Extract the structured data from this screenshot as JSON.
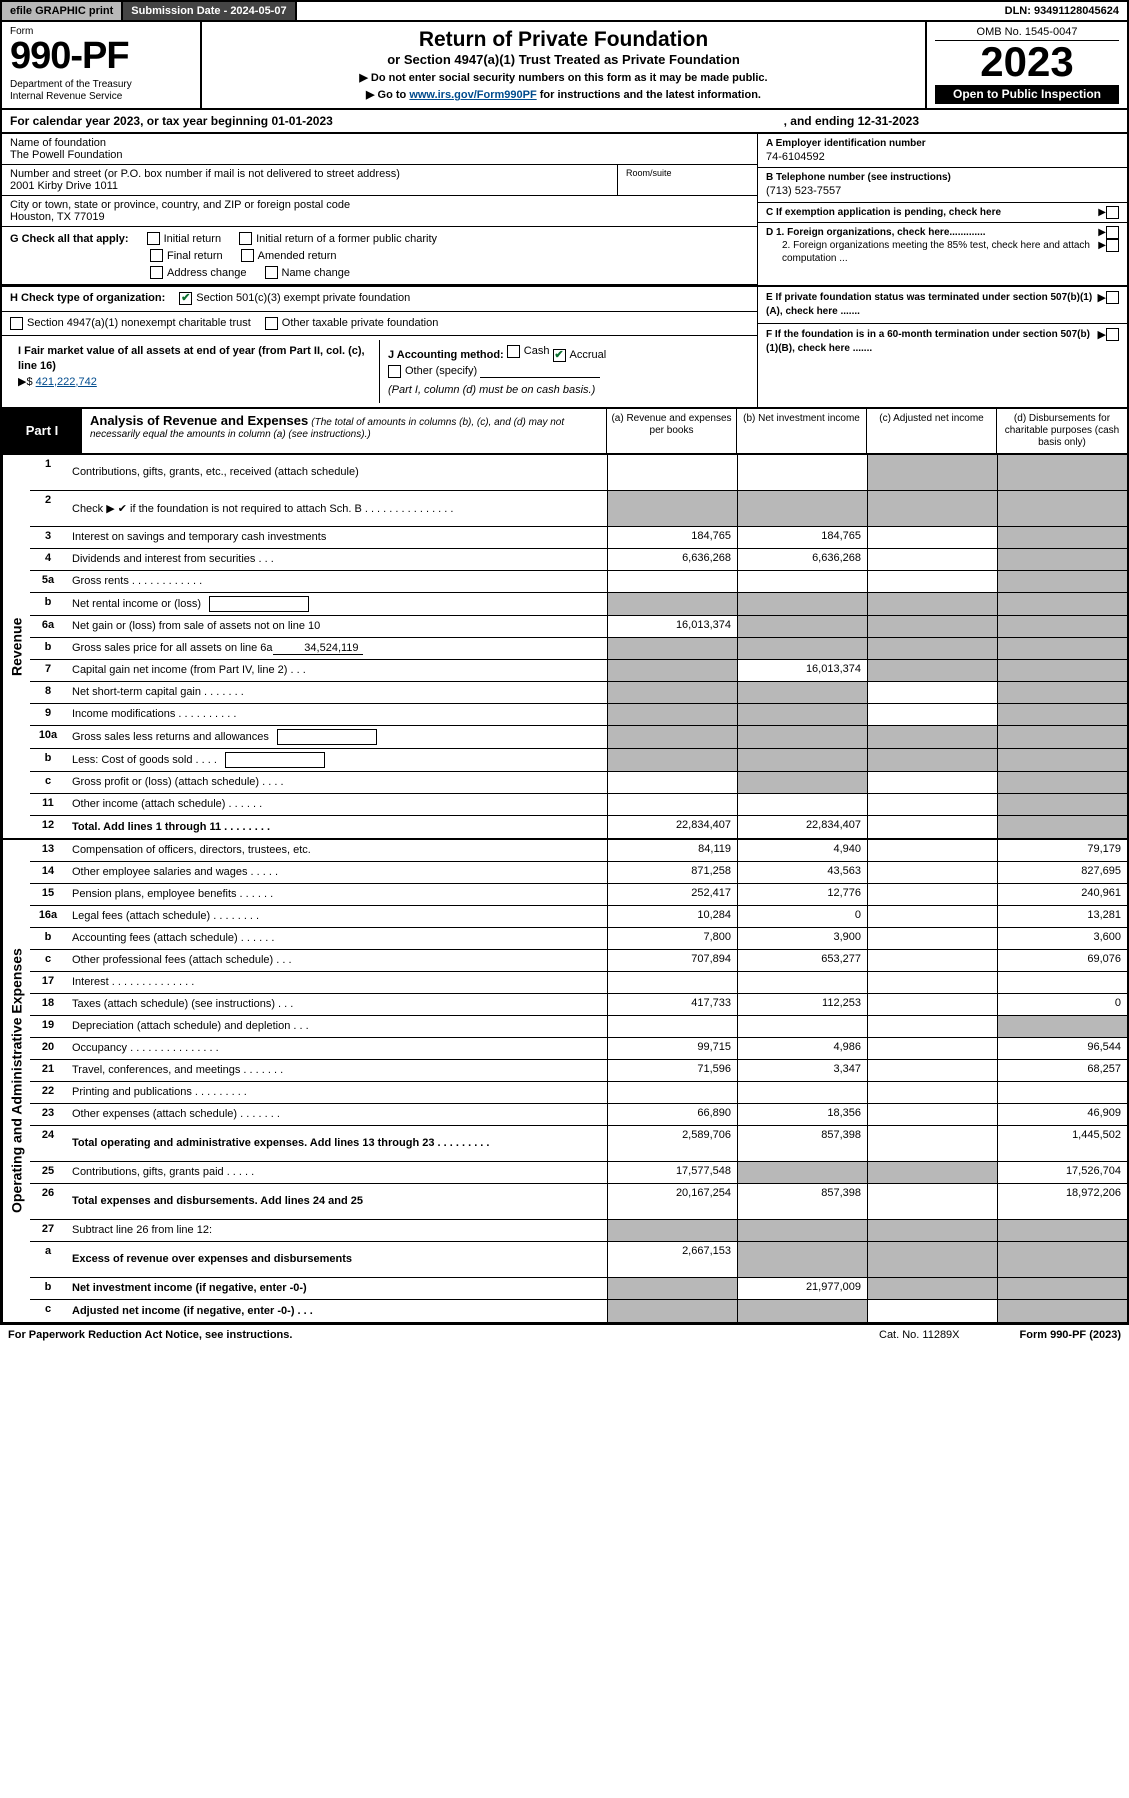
{
  "top": {
    "efile": "efile GRAPHIC print",
    "subm_label": "Submission Date - 2024-05-07",
    "dln": "DLN: 93491128045624"
  },
  "header": {
    "form_word": "Form",
    "form_no": "990-PF",
    "dept": "Department of the Treasury",
    "irs": "Internal Revenue Service",
    "title": "Return of Private Foundation",
    "subtitle": "or Section 4947(a)(1) Trust Treated as Private Foundation",
    "instr1": "▶ Do not enter social security numbers on this form as it may be made public.",
    "instr2_pre": "▶ Go to ",
    "instr2_link": "www.irs.gov/Form990PF",
    "instr2_post": " for instructions and the latest information.",
    "omb": "OMB No. 1545-0047",
    "year": "2023",
    "open": "Open to Public Inspection"
  },
  "calyear": {
    "pre": "For calendar year 2023, or tax year beginning 01-01-2023",
    "end": ", and ending 12-31-2023"
  },
  "entity": {
    "name_lab": "Name of foundation",
    "name": "The Powell Foundation",
    "addr_lab": "Number and street (or P.O. box number if mail is not delivered to street address)",
    "addr": "2001 Kirby Drive 1011",
    "room_lab": "Room/suite",
    "city_lab": "City or town, state or province, country, and ZIP or foreign postal code",
    "city": "Houston, TX  77019",
    "A_lab": "A Employer identification number",
    "A_val": "74-6104592",
    "B_lab": "B Telephone number (see instructions)",
    "B_val": "(713) 523-7557",
    "C_lab": "C If exemption application is pending, check here",
    "D1": "D 1. Foreign organizations, check here.............",
    "D2": "2. Foreign organizations meeting the 85% test, check here and attach computation ...",
    "E": "E  If private foundation status was terminated under section 507(b)(1)(A), check here .......",
    "F": "F  If the foundation is in a 60-month termination under section 507(b)(1)(B), check here .......",
    "G_lab": "G Check all that apply:",
    "G_opts": [
      "Initial return",
      "Initial return of a former public charity",
      "Final return",
      "Amended return",
      "Address change",
      "Name change"
    ],
    "H_lab": "H Check type of organization:",
    "H1": "Section 501(c)(3) exempt private foundation",
    "H2": "Section 4947(a)(1) nonexempt charitable trust",
    "H3": "Other taxable private foundation",
    "I_lab": "I Fair market value of all assets at end of year (from Part II, col. (c), line 16)",
    "I_val": "421,222,742",
    "J_lab": "J Accounting method:",
    "J_cash": "Cash",
    "J_accrual": "Accrual",
    "J_other": "Other (specify)",
    "J_note": "(Part I, column (d) must be on cash basis.)"
  },
  "part1": {
    "label": "Part I",
    "title": "Analysis of Revenue and Expenses",
    "note": "(The total of amounts in columns (b), (c), and (d) may not necessarily equal the amounts in column (a) (see instructions).)",
    "cols": {
      "a": "(a)   Revenue and expenses per books",
      "b": "(b)   Net investment income",
      "c": "(c)   Adjusted net income",
      "d": "(d)   Disbursements for charitable purposes (cash basis only)"
    }
  },
  "sections": {
    "revenue": "Revenue",
    "expenses": "Operating and Administrative Expenses"
  },
  "rows": [
    {
      "n": "1",
      "d": "Contributions, gifts, grants, etc., received (attach schedule)",
      "a": "",
      "b": "",
      "cGrey": true,
      "dGrey": true,
      "tall": true
    },
    {
      "n": "2",
      "d": "Check ▶ ✔ if the foundation is not required to attach Sch. B   .  .  .  .  .  .  .  .  .  .  .  .  .  .  .",
      "noAmts": true,
      "tall": true
    },
    {
      "n": "3",
      "d": "Interest on savings and temporary cash investments",
      "a": "184,765",
      "b": "184,765",
      "cGrey": false,
      "dGrey": true
    },
    {
      "n": "4",
      "d": "Dividends and interest from securities   .  .  .",
      "a": "6,636,268",
      "b": "6,636,268",
      "dGrey": true
    },
    {
      "n": "5a",
      "d": "Gross rents   .  .  .  .  .  .  .  .  .  .  .  .",
      "a": "",
      "b": "",
      "dGrey": true
    },
    {
      "n": "b",
      "d": "Net rental income or (loss)",
      "inline": true,
      "aGrey": true,
      "bGrey": true,
      "cGrey": true,
      "dGrey": true
    },
    {
      "n": "6a",
      "d": "Net gain or (loss) from sale of assets not on line 10",
      "a": "16,013,374",
      "bGrey": true,
      "cGrey": true,
      "dGrey": true
    },
    {
      "n": "b",
      "d": "Gross sales price for all assets on line 6a",
      "inlineVal": "34,524,119",
      "aGrey": true,
      "bGrey": true,
      "cGrey": true,
      "dGrey": true
    },
    {
      "n": "7",
      "d": "Capital gain net income (from Part IV, line 2)   .  .  .",
      "aGrey": true,
      "b": "16,013,374",
      "cGrey": true,
      "dGrey": true
    },
    {
      "n": "8",
      "d": "Net short-term capital gain  .  .  .  .  .  .  .",
      "aGrey": true,
      "bGrey": true,
      "dGrey": true
    },
    {
      "n": "9",
      "d": "Income modifications .  .  .  .  .  .  .  .  .  .",
      "aGrey": true,
      "bGrey": true,
      "dGrey": true
    },
    {
      "n": "10a",
      "d": "Gross sales less returns and allowances",
      "inline": true,
      "aGrey": true,
      "bGrey": true,
      "cGrey": true,
      "dGrey": true
    },
    {
      "n": "b",
      "d": "Less: Cost of goods sold   .  .  .  .",
      "inline": true,
      "aGrey": true,
      "bGrey": true,
      "cGrey": true,
      "dGrey": true
    },
    {
      "n": "c",
      "d": "Gross profit or (loss) (attach schedule)   .  .  .  .",
      "a": "",
      "bGrey": true,
      "dGrey": true
    },
    {
      "n": "11",
      "d": "Other income (attach schedule)   .  .  .  .  .  .",
      "a": "",
      "b": "",
      "dGrey": true
    },
    {
      "n": "12",
      "d": "Total. Add lines 1 through 11   .  .  .  .  .  .  .  .",
      "bold": true,
      "a": "22,834,407",
      "b": "22,834,407",
      "dGrey": true
    }
  ],
  "exp_rows": [
    {
      "n": "13",
      "d": "Compensation of officers, directors, trustees, etc.",
      "a": "84,119",
      "b": "4,940",
      "dv": "79,179"
    },
    {
      "n": "14",
      "d": "Other employee salaries and wages   .  .  .  .  .",
      "a": "871,258",
      "b": "43,563",
      "dv": "827,695"
    },
    {
      "n": "15",
      "d": "Pension plans, employee benefits .  .  .  .  .  .",
      "a": "252,417",
      "b": "12,776",
      "dv": "240,961"
    },
    {
      "n": "16a",
      "d": "Legal fees (attach schedule) .  .  .  .  .  .  .  .",
      "a": "10,284",
      "b": "0",
      "dv": "13,281"
    },
    {
      "n": "b",
      "d": "Accounting fees (attach schedule)  .  .  .  .  .  .",
      "a": "7,800",
      "b": "3,900",
      "dv": "3,600"
    },
    {
      "n": "c",
      "d": "Other professional fees (attach schedule)   .  .  .",
      "a": "707,894",
      "b": "653,277",
      "dv": "69,076"
    },
    {
      "n": "17",
      "d": "Interest  .  .  .  .  .  .  .  .  .  .  .  .  .  .",
      "a": "",
      "b": "",
      "dv": ""
    },
    {
      "n": "18",
      "d": "Taxes (attach schedule) (see instructions)   .  .  .",
      "a": "417,733",
      "b": "112,253",
      "dv": "0"
    },
    {
      "n": "19",
      "d": "Depreciation (attach schedule) and depletion   .  .  .",
      "a": "",
      "b": "",
      "dGrey": true
    },
    {
      "n": "20",
      "d": "Occupancy .  .  .  .  .  .  .  .  .  .  .  .  .  .  .",
      "a": "99,715",
      "b": "4,986",
      "dv": "96,544"
    },
    {
      "n": "21",
      "d": "Travel, conferences, and meetings .  .  .  .  .  .  .",
      "a": "71,596",
      "b": "3,347",
      "dv": "68,257"
    },
    {
      "n": "22",
      "d": "Printing and publications .  .  .  .  .  .  .  .  .",
      "a": "",
      "b": "",
      "dv": ""
    },
    {
      "n": "23",
      "d": "Other expenses (attach schedule) .  .  .  .  .  .  .",
      "a": "66,890",
      "b": "18,356",
      "dv": "46,909"
    },
    {
      "n": "24",
      "d": "Total operating and administrative expenses. Add lines 13 through 23  .  .  .  .  .  .  .  .  .",
      "bold": true,
      "tall": true,
      "a": "2,589,706",
      "b": "857,398",
      "dv": "1,445,502"
    },
    {
      "n": "25",
      "d": "Contributions, gifts, grants paid   .  .  .  .  .",
      "a": "17,577,548",
      "bGrey": true,
      "cGrey": true,
      "dv": "17,526,704"
    },
    {
      "n": "26",
      "d": "Total expenses and disbursements. Add lines 24 and 25",
      "bold": true,
      "tall": true,
      "a": "20,167,254",
      "b": "857,398",
      "dv": "18,972,206"
    },
    {
      "n": "27",
      "d": "Subtract line 26 from line 12:",
      "aGrey": true,
      "bGrey": true,
      "cGrey": true,
      "dGrey": true
    },
    {
      "n": "a",
      "d": "Excess of revenue over expenses and disbursements",
      "bold": true,
      "tall": true,
      "a": "2,667,153",
      "bGrey": true,
      "cGrey": true,
      "dGrey": true
    },
    {
      "n": "b",
      "d": "Net investment income (if negative, enter -0-)",
      "bold": true,
      "aGrey": true,
      "b": "21,977,009",
      "cGrey": true,
      "dGrey": true
    },
    {
      "n": "c",
      "d": "Adjusted net income (if negative, enter -0-)   .  .  .",
      "bold": true,
      "aGrey": true,
      "bGrey": true,
      "c": "",
      "dGrey": true
    }
  ],
  "footer": {
    "pra": "For Paperwork Reduction Act Notice, see instructions.",
    "cat": "Cat. No. 11289X",
    "form": "Form 990-PF (2023)"
  },
  "colors": {
    "grey_cell": "#b8b8b8",
    "link": "#004b8d",
    "check_green": "#0d7030"
  }
}
